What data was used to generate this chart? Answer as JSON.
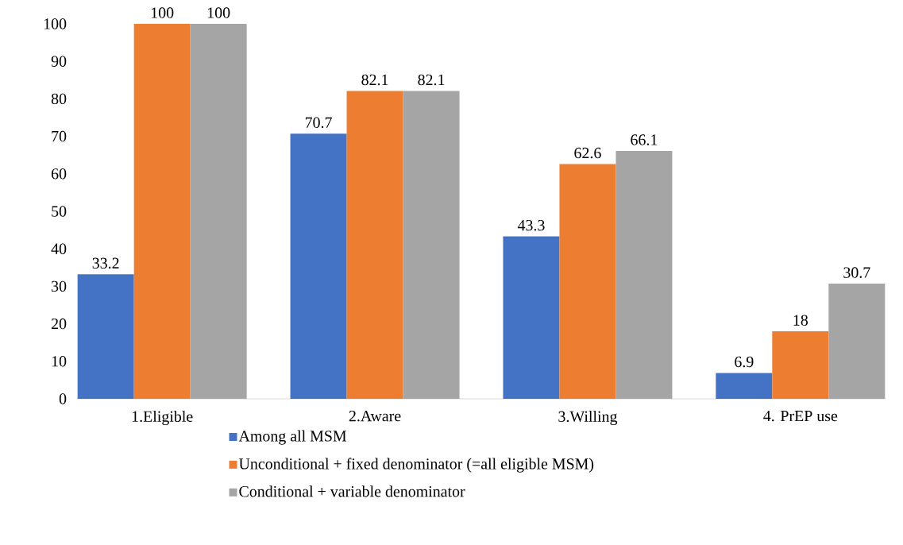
{
  "chart_data": {
    "type": "bar",
    "categories": [
      "1.Eligible",
      "2.Aware",
      "3.Willing",
      "4. PrEP use"
    ],
    "series": [
      {
        "name": "Among all MSM",
        "color": "#4472c4",
        "values": [
          33.2,
          70.7,
          43.3,
          6.9
        ]
      },
      {
        "name": "Unconditional + fixed denominator (=all eligible MSM)",
        "color": "#ed7d31",
        "values": [
          100,
          82.1,
          62.6,
          18
        ]
      },
      {
        "name": "Conditional + variable denominator",
        "color": "#a5a5a5",
        "values": [
          100,
          82.1,
          66.1,
          30.7
        ]
      }
    ],
    "ylim": [
      0,
      100
    ],
    "yticks": [
      0,
      10,
      20,
      30,
      40,
      50,
      60,
      70,
      80,
      90,
      100
    ],
    "data_labels": true,
    "legend": "bottom",
    "grid": false
  }
}
